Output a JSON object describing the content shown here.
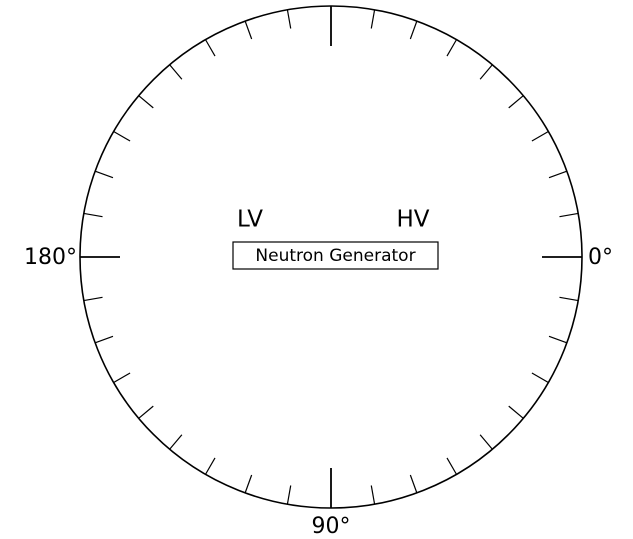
{
  "angle_labels": {
    "right": "0°",
    "bottom": "90°",
    "left": "180°"
  },
  "center": {
    "left_label": "LV",
    "right_label": "HV",
    "box_label": "Neutron Generator"
  }
}
